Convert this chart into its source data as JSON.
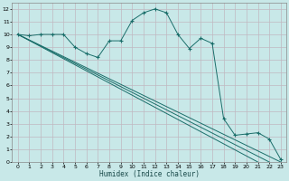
{
  "xlabel": "Humidex (Indice chaleur)",
  "bg_color": "#c8e8e8",
  "grid_color": "#b8d8d8",
  "line_color": "#1a6e6a",
  "xlim": [
    -0.5,
    23.5
  ],
  "ylim": [
    0,
    12.5
  ],
  "series": [
    {
      "x": [
        0,
        1,
        2,
        3,
        4,
        5,
        6,
        7,
        8,
        9,
        10,
        11,
        12,
        13,
        14,
        15,
        16,
        17,
        18,
        19,
        20,
        21,
        22,
        23
      ],
      "y": [
        10,
        9.9,
        10,
        10,
        10,
        9.0,
        8.5,
        8.2,
        9.5,
        9.5,
        11.1,
        11.7,
        12.0,
        11.7,
        10.0,
        8.9,
        9.7,
        9.3,
        3.4,
        2.1,
        2.2,
        2.3,
        1.8,
        0.2
      ],
      "marker": "+"
    },
    {
      "x": [
        0,
        23
      ],
      "y": [
        10,
        0
      ],
      "marker": null
    },
    {
      "x": [
        0,
        22
      ],
      "y": [
        10,
        0
      ],
      "marker": null
    },
    {
      "x": [
        0,
        21
      ],
      "y": [
        10,
        0
      ],
      "marker": null
    }
  ]
}
